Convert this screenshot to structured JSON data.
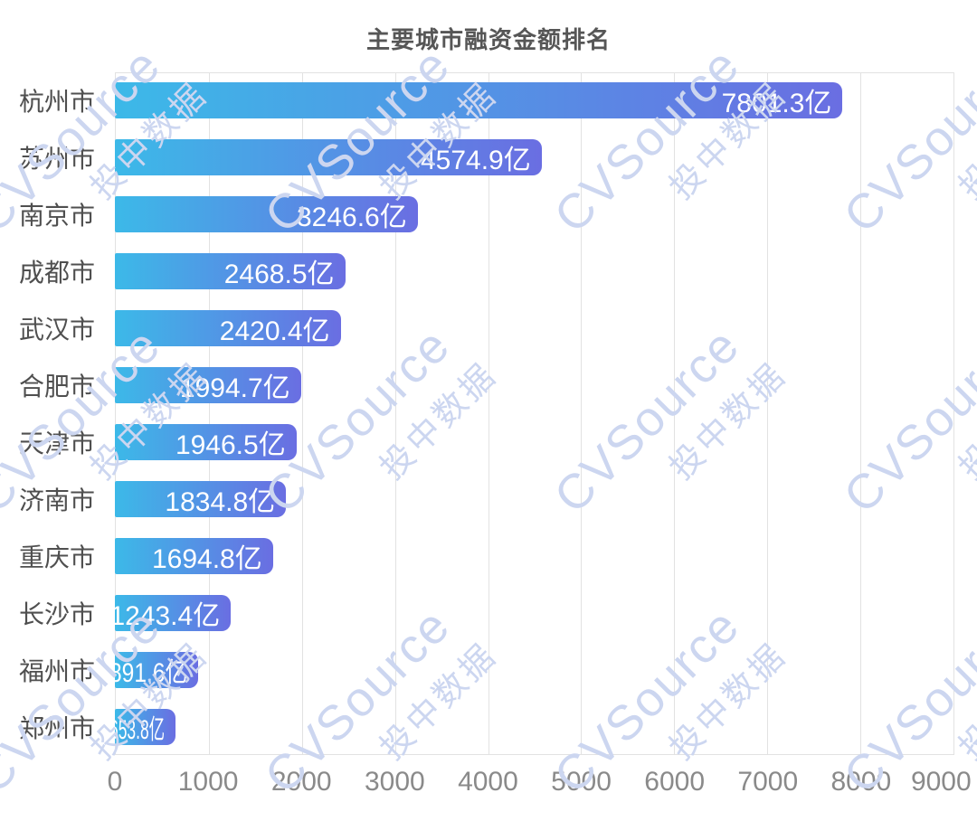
{
  "title": "主要城市融资金额排名",
  "watermark": {
    "en": "CVSource",
    "cn": "投中数据"
  },
  "colors": {
    "bar_gradient_start": "#3cb9e8",
    "bar_gradient_end": "#6a6ee2",
    "gridline": "#e2e2e2",
    "axis_label": "#8a8a8a",
    "category_label": "#4f4f4f",
    "title_text": "#565656",
    "value_label": "#ffffff",
    "watermark": "#ccd6f0"
  },
  "chart_data": {
    "type": "bar",
    "orientation": "horizontal",
    "title": "主要城市融资金额排名",
    "unit": "亿",
    "categories": [
      "杭州市",
      "苏州市",
      "南京市",
      "成都市",
      "武汉市",
      "合肥市",
      "天津市",
      "济南市",
      "重庆市",
      "长沙市",
      "福州市",
      "郑州市"
    ],
    "values": [
      7801.3,
      4574.9,
      3246.6,
      2468.5,
      2420.4,
      1994.7,
      1946.5,
      1834.8,
      1694.8,
      1243.4,
      891.6,
      653.8
    ],
    "value_labels": [
      "7801.3亿",
      "4574.9亿",
      "3246.6亿",
      "2468.5亿",
      "2420.4亿",
      "1994.7亿",
      "1946.5亿",
      "1834.8亿",
      "1694.8亿",
      "1243.4亿",
      "891.6亿",
      "653.8亿"
    ],
    "x_ticks": [
      0,
      1000,
      2000,
      3000,
      4000,
      5000,
      6000,
      7000,
      8000,
      9000
    ],
    "xlim": [
      0,
      9000
    ],
    "grid": true,
    "legend": false
  }
}
